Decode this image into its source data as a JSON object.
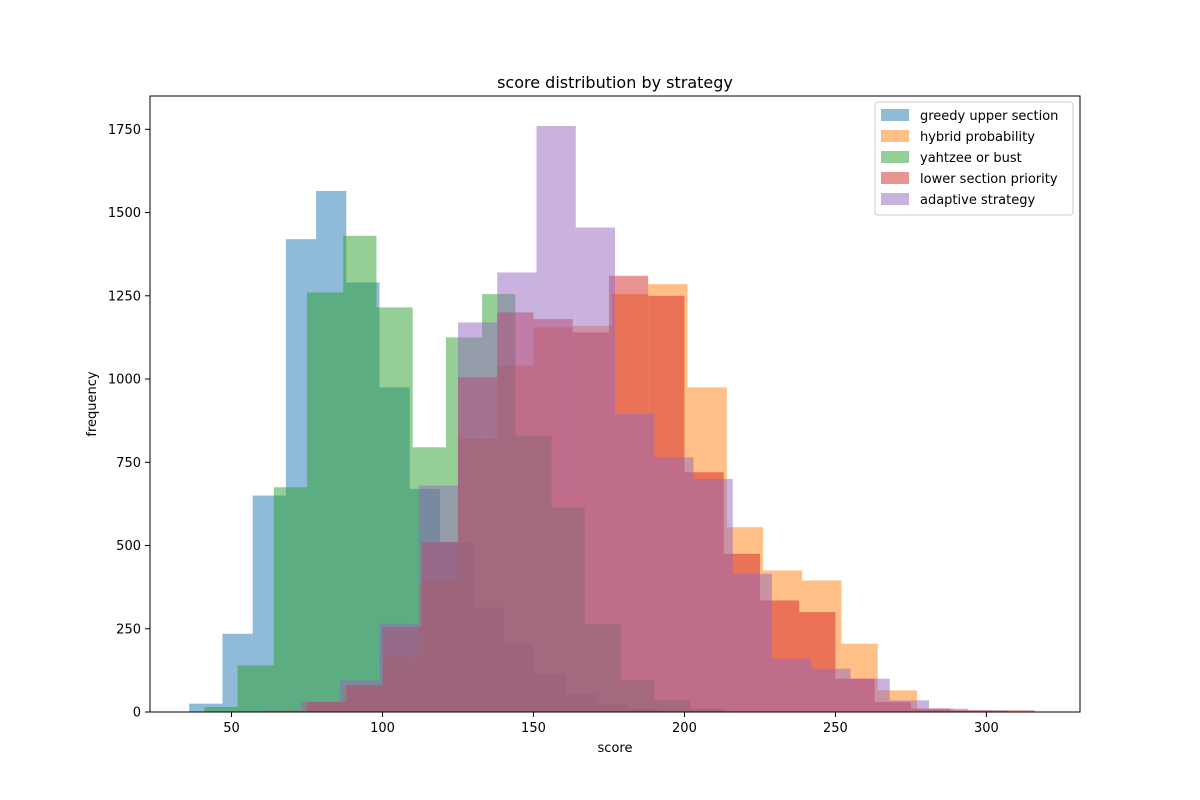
{
  "chart_data": {
    "type": "bar",
    "subtype": "overlaid-histogram",
    "title": "score distribution by strategy",
    "xlabel": "score",
    "ylabel": "frequency",
    "xlim": [
      23,
      331
    ],
    "ylim": [
      0,
      1850
    ],
    "xticks": [
      50,
      100,
      150,
      200,
      250,
      300
    ],
    "yticks": [
      0,
      250,
      500,
      750,
      1000,
      1250,
      1500,
      1750
    ],
    "grid": false,
    "legend_position": "top-right",
    "bar_opacity": 0.5,
    "series": [
      {
        "name": "greedy upper section",
        "color": "#1f77b4",
        "bins": [
          {
            "x0": 36,
            "x1": 47,
            "count": 25
          },
          {
            "x0": 47,
            "x1": 57,
            "count": 235
          },
          {
            "x0": 57,
            "x1": 68,
            "count": 650
          },
          {
            "x0": 68,
            "x1": 78,
            "count": 1420
          },
          {
            "x0": 78,
            "x1": 88,
            "count": 1565
          },
          {
            "x0": 88,
            "x1": 99,
            "count": 1290
          },
          {
            "x0": 99,
            "x1": 109,
            "count": 975
          },
          {
            "x0": 109,
            "x1": 119,
            "count": 670
          },
          {
            "x0": 119,
            "x1": 130,
            "count": 510
          },
          {
            "x0": 130,
            "x1": 140,
            "count": 315
          },
          {
            "x0": 140,
            "x1": 150,
            "count": 205
          },
          {
            "x0": 150,
            "x1": 161,
            "count": 115
          },
          {
            "x0": 161,
            "x1": 171,
            "count": 55
          },
          {
            "x0": 171,
            "x1": 181,
            "count": 25
          },
          {
            "x0": 181,
            "x1": 192,
            "count": 10
          }
        ]
      },
      {
        "name": "hybrid probability",
        "color": "#ff7f0e",
        "bins": [
          {
            "x0": 62,
            "x1": 74,
            "count": 5
          },
          {
            "x0": 74,
            "x1": 87,
            "count": 30
          },
          {
            "x0": 87,
            "x1": 100,
            "count": 80
          },
          {
            "x0": 100,
            "x1": 112,
            "count": 165
          },
          {
            "x0": 112,
            "x1": 125,
            "count": 395
          },
          {
            "x0": 125,
            "x1": 138,
            "count": 820
          },
          {
            "x0": 138,
            "x1": 150,
            "count": 1040
          },
          {
            "x0": 150,
            "x1": 163,
            "count": 1155
          },
          {
            "x0": 163,
            "x1": 176,
            "count": 1160
          },
          {
            "x0": 176,
            "x1": 188,
            "count": 1255
          },
          {
            "x0": 188,
            "x1": 201,
            "count": 1285
          },
          {
            "x0": 201,
            "x1": 214,
            "count": 975
          },
          {
            "x0": 214,
            "x1": 226,
            "count": 555
          },
          {
            "x0": 226,
            "x1": 239,
            "count": 425
          },
          {
            "x0": 239,
            "x1": 252,
            "count": 395
          },
          {
            "x0": 252,
            "x1": 264,
            "count": 205
          },
          {
            "x0": 264,
            "x1": 277,
            "count": 65
          },
          {
            "x0": 277,
            "x1": 289,
            "count": 10
          },
          {
            "x0": 289,
            "x1": 302,
            "count": 5
          }
        ]
      },
      {
        "name": "yahtzee or bust",
        "color": "#2ca02c",
        "bins": [
          {
            "x0": 41,
            "x1": 52,
            "count": 15
          },
          {
            "x0": 52,
            "x1": 64,
            "count": 140
          },
          {
            "x0": 64,
            "x1": 75,
            "count": 675
          },
          {
            "x0": 75,
            "x1": 87,
            "count": 1260
          },
          {
            "x0": 87,
            "x1": 98,
            "count": 1430
          },
          {
            "x0": 98,
            "x1": 110,
            "count": 1215
          },
          {
            "x0": 110,
            "x1": 121,
            "count": 795
          },
          {
            "x0": 121,
            "x1": 133,
            "count": 1125
          },
          {
            "x0": 133,
            "x1": 144,
            "count": 1255
          },
          {
            "x0": 144,
            "x1": 156,
            "count": 830
          },
          {
            "x0": 156,
            "x1": 167,
            "count": 615
          },
          {
            "x0": 167,
            "x1": 179,
            "count": 265
          },
          {
            "x0": 179,
            "x1": 190,
            "count": 95
          },
          {
            "x0": 190,
            "x1": 202,
            "count": 35
          },
          {
            "x0": 202,
            "x1": 213,
            "count": 10
          }
        ]
      },
      {
        "name": "lower section priority",
        "color": "#d62728",
        "bins": [
          {
            "x0": 75,
            "x1": 88,
            "count": 30
          },
          {
            "x0": 88,
            "x1": 100,
            "count": 80
          },
          {
            "x0": 100,
            "x1": 113,
            "count": 255
          },
          {
            "x0": 113,
            "x1": 125,
            "count": 510
          },
          {
            "x0": 125,
            "x1": 138,
            "count": 1005
          },
          {
            "x0": 138,
            "x1": 150,
            "count": 1200
          },
          {
            "x0": 150,
            "x1": 163,
            "count": 1180
          },
          {
            "x0": 163,
            "x1": 175,
            "count": 1140
          },
          {
            "x0": 175,
            "x1": 188,
            "count": 1310
          },
          {
            "x0": 188,
            "x1": 200,
            "count": 1250
          },
          {
            "x0": 200,
            "x1": 213,
            "count": 720
          },
          {
            "x0": 213,
            "x1": 225,
            "count": 475
          },
          {
            "x0": 225,
            "x1": 238,
            "count": 335
          },
          {
            "x0": 238,
            "x1": 250,
            "count": 300
          },
          {
            "x0": 250,
            "x1": 263,
            "count": 100
          },
          {
            "x0": 263,
            "x1": 275,
            "count": 30
          },
          {
            "x0": 275,
            "x1": 288,
            "count": 10
          },
          {
            "x0": 288,
            "x1": 300,
            "count": 5
          },
          {
            "x0": 300,
            "x1": 316,
            "count": 5
          }
        ]
      },
      {
        "name": "adaptive strategy",
        "color": "#9467bd",
        "bins": [
          {
            "x0": 60,
            "x1": 73,
            "count": 5
          },
          {
            "x0": 73,
            "x1": 86,
            "count": 30
          },
          {
            "x0": 86,
            "x1": 99,
            "count": 95
          },
          {
            "x0": 99,
            "x1": 112,
            "count": 265
          },
          {
            "x0": 112,
            "x1": 125,
            "count": 680
          },
          {
            "x0": 125,
            "x1": 138,
            "count": 1170
          },
          {
            "x0": 138,
            "x1": 151,
            "count": 1320
          },
          {
            "x0": 151,
            "x1": 164,
            "count": 1760
          },
          {
            "x0": 164,
            "x1": 177,
            "count": 1455
          },
          {
            "x0": 177,
            "x1": 190,
            "count": 895
          },
          {
            "x0": 190,
            "x1": 203,
            "count": 765
          },
          {
            "x0": 203,
            "x1": 216,
            "count": 700
          },
          {
            "x0": 216,
            "x1": 229,
            "count": 415
          },
          {
            "x0": 229,
            "x1": 242,
            "count": 160
          },
          {
            "x0": 242,
            "x1": 255,
            "count": 130
          },
          {
            "x0": 255,
            "x1": 268,
            "count": 100
          },
          {
            "x0": 268,
            "x1": 281,
            "count": 35
          },
          {
            "x0": 281,
            "x1": 294,
            "count": 10
          },
          {
            "x0": 294,
            "x1": 307,
            "count": 5
          }
        ]
      }
    ]
  }
}
